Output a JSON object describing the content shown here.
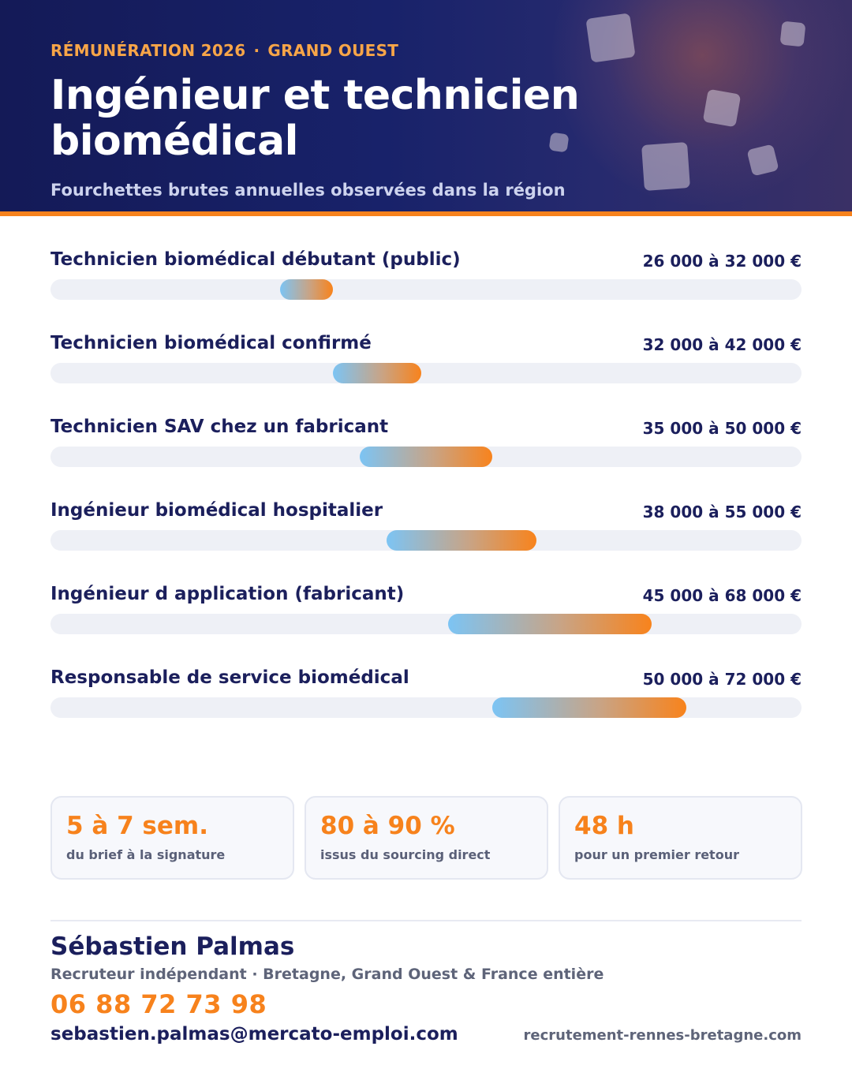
{
  "header": {
    "kicker_left": "RÉMUNÉRATION 2026",
    "kicker_separator": "·",
    "kicker_right": "GRAND OUEST",
    "title": "Ingénieur et technicien biomédical",
    "subtitle": "Fourchettes brutes annuelles observées dans la région"
  },
  "chart_data": {
    "type": "bar",
    "orientation": "horizontal-range",
    "unit": "€",
    "xlim": [
      0,
      85000
    ],
    "categories": [
      "Technicien biomédical débutant (public)",
      "Technicien biomédical confirmé",
      "Technicien SAV chez un fabricant",
      "Ingénieur biomédical hospitalier",
      "Ingénieur d application (fabricant)",
      "Responsable de service biomédical"
    ],
    "ranges": [
      {
        "min": 26000,
        "max": 32000,
        "label": "26 000 à 32 000 €"
      },
      {
        "min": 32000,
        "max": 42000,
        "label": "32 000 à 42 000 €"
      },
      {
        "min": 35000,
        "max": 50000,
        "label": "35 000 à 50 000 €"
      },
      {
        "min": 38000,
        "max": 55000,
        "label": "38 000 à 55 000 €"
      },
      {
        "min": 45000,
        "max": 68000,
        "label": "45 000 à 68 000 €"
      },
      {
        "min": 50000,
        "max": 72000,
        "label": "50 000 à 72 000 €"
      }
    ],
    "colors": {
      "gradient_start": "#7cc4f4",
      "gradient_end": "#f8831c",
      "track": "#eef0f6"
    }
  },
  "stats": [
    {
      "value": "5 à 7 sem.",
      "label": "du brief à la signature"
    },
    {
      "value": "80 à 90 %",
      "label": "issus du sourcing direct"
    },
    {
      "value": "48 h",
      "label": "pour un premier retour"
    }
  ],
  "contact": {
    "name": "Sébastien Palmas",
    "role": "Recruteur indépendant · Bretagne, Grand Ouest & France entière",
    "phone": "06 88 72 73 98",
    "email": "sebastien.palmas@mercato-emploi.com",
    "website": "recrutement-rennes-bretagne.com"
  },
  "colors": {
    "navy": "#1b1f5c",
    "orange": "#f7821c",
    "header_bg": "#141a57"
  }
}
